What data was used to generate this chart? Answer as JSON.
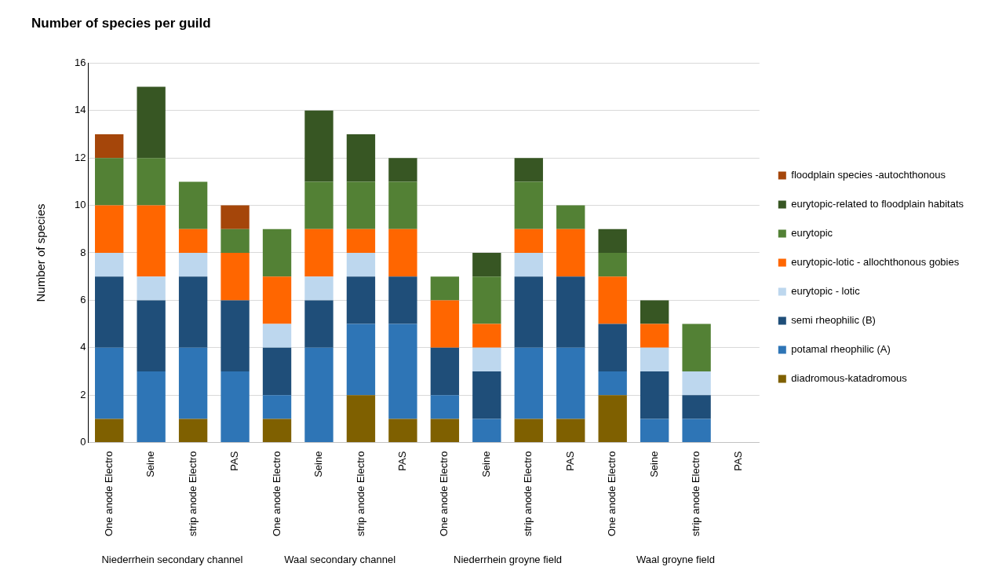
{
  "chart_data": {
    "type": "bar",
    "stacked": true,
    "title": "Number of species per guild",
    "ylabel": "Number of species",
    "categories": [
      "One anode Electro",
      "Seine",
      "strip anode Electro",
      "PAS",
      "One anode Electro",
      "Seine",
      "strip anode Electro",
      "PAS",
      "One anode Electro",
      "Seine",
      "strip anode Electro",
      "PAS",
      "One anode Electro",
      "Seine",
      "strip anode Electro",
      "PAS"
    ],
    "annotations": [
      "Niederrhein secondary channel",
      "Waal secondary channel",
      "Niederrhein groyne field",
      "Waal groyne field"
    ],
    "series": [
      {
        "name": "diadromous-katadromous",
        "color": "#7f6000",
        "values": [
          1,
          0,
          1,
          0,
          1,
          0,
          2,
          1,
          1,
          0,
          1,
          1,
          2,
          0,
          0,
          0
        ]
      },
      {
        "name": "potamal rheophilic (A)",
        "color": "#2e75b6",
        "values": [
          3,
          3,
          3,
          3,
          1,
          4,
          3,
          4,
          1,
          1,
          3,
          3,
          1,
          1,
          1,
          0
        ]
      },
      {
        "name": "semi rheophilic (B)",
        "color": "#1f4e79",
        "values": [
          3,
          3,
          3,
          3,
          2,
          2,
          2,
          2,
          2,
          2,
          3,
          3,
          2,
          2,
          1,
          0
        ]
      },
      {
        "name": "eurytopic - lotic",
        "color": "#bdd7ee",
        "values": [
          1,
          1,
          1,
          0,
          1,
          1,
          1,
          0,
          0,
          1,
          1,
          0,
          0,
          1,
          1,
          0
        ]
      },
      {
        "name": "eurytopic-lotic - allochthonous gobies",
        "color": "#ff6600",
        "values": [
          2,
          3,
          1,
          2,
          2,
          2,
          1,
          2,
          2,
          1,
          1,
          2,
          2,
          1,
          0,
          0
        ]
      },
      {
        "name": "eurytopic",
        "color": "#538135",
        "values": [
          2,
          2,
          2,
          1,
          2,
          2,
          2,
          2,
          1,
          2,
          2,
          1,
          1,
          0,
          2,
          0
        ]
      },
      {
        "name": "eurytopic-related to floodplain habitats",
        "color": "#375623",
        "values": [
          0,
          3,
          0,
          0,
          0,
          3,
          2,
          1,
          0,
          1,
          1,
          0,
          1,
          1,
          0,
          0
        ]
      },
      {
        "name": "floodplain species -autochthonous",
        "color": "#a5460a",
        "values": [
          1,
          0,
          0,
          1,
          0,
          0,
          0,
          0,
          0,
          0,
          0,
          0,
          0,
          0,
          0,
          0
        ]
      }
    ],
    "ylim": [
      0,
      16
    ],
    "yticks": [
      0,
      2,
      4,
      6,
      8,
      10,
      12,
      14,
      16
    ],
    "grid": "y",
    "legend": "right"
  }
}
